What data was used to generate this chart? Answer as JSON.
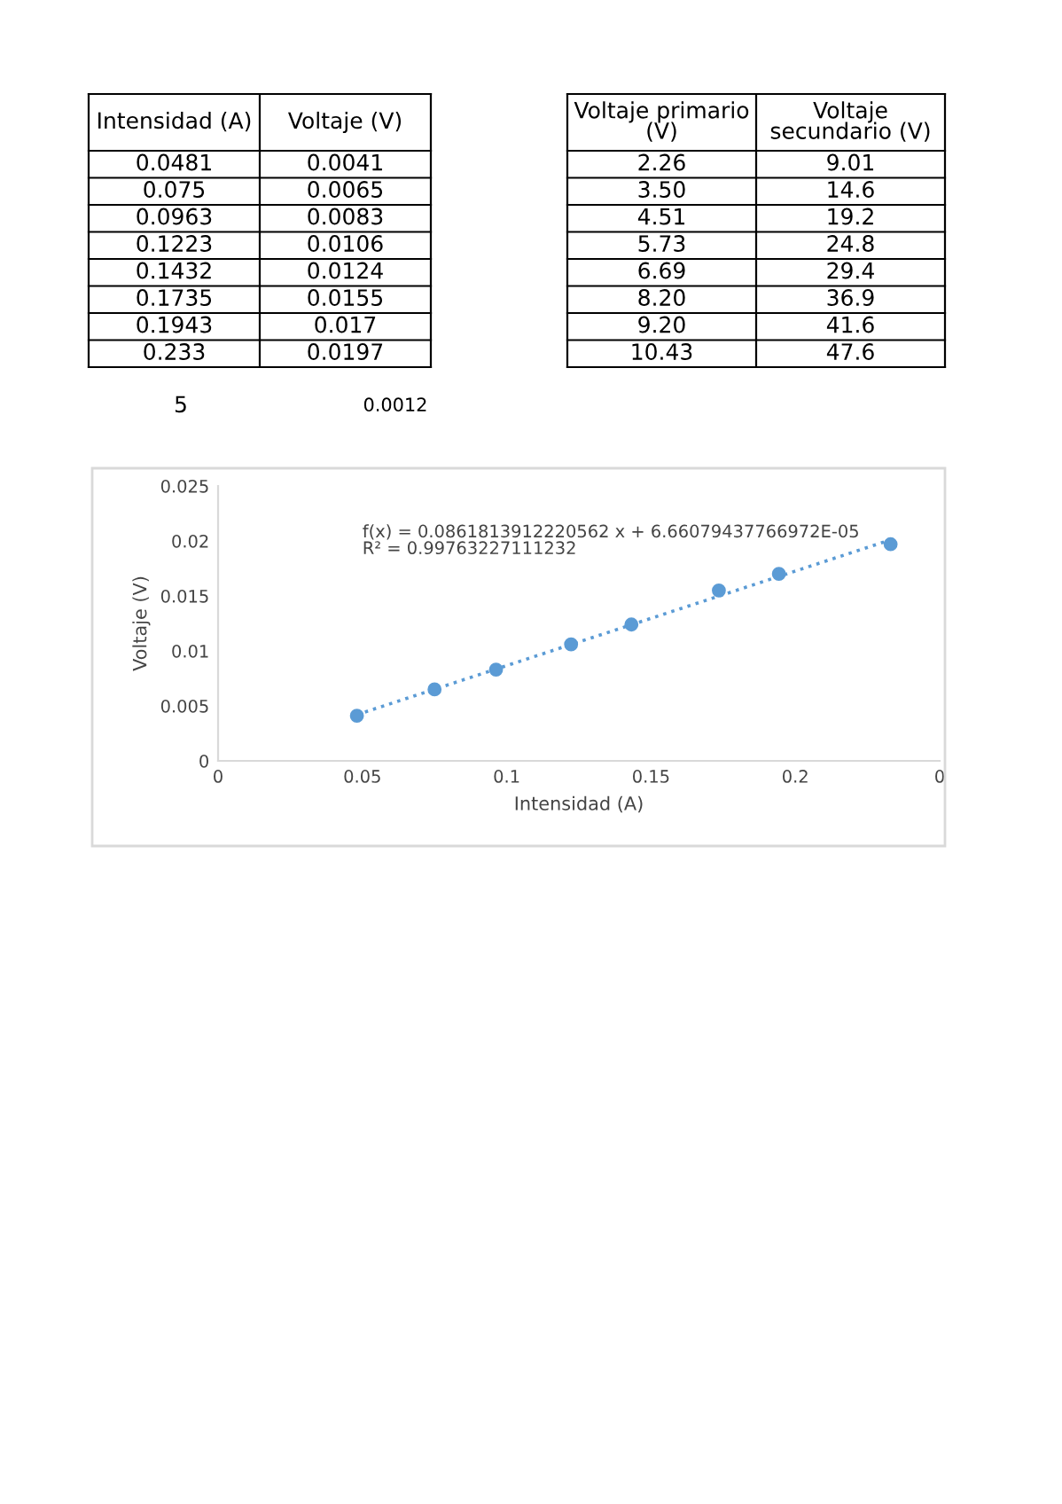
{
  "chart_data": [
    {
      "type": "other",
      "categories": [
        "Intensidad (A)",
        "Voltaje (V)"
      ],
      "annotations": [
        "0.0481",
        "0.0041",
        "0.075",
        "0.0065",
        "0.0963",
        "0.0083",
        "0.1223",
        "0.0106",
        "0.1432",
        "0.0124",
        "0.1735",
        "0.0155",
        "0.1943",
        "0.017",
        "0.233",
        "0.0197"
      ]
    },
    {
      "type": "other",
      "categories": [
        "Voltaje primario\n(V)",
        "Voltaje\nsecundario (V)"
      ],
      "annotations": [
        "2.26",
        "9.01",
        "3.50",
        "14.6",
        "4.51",
        "19.2",
        "5.73",
        "24.8",
        "6.69",
        "29.4",
        "8.20",
        "36.9",
        "9.20",
        "41.6",
        "10.43",
        "47.6"
      ]
    },
    {
      "type": "other",
      "annotations": [
        "5",
        "0.0012"
      ]
    },
    {
      "type": "scatter",
      "xlabel": "Intensidad (A)",
      "ylabel": "Voltaje (V)",
      "x": [
        0.0481,
        0.075,
        0.0963,
        0.1223,
        0.1432,
        0.1735,
        0.1943,
        0.233
      ],
      "series": [
        {
          "type": "scatter",
          "color": "#5b9bd5",
          "marker": "circle",
          "values": [
            0.0041,
            0.0065,
            0.0083,
            0.0106,
            0.0124,
            0.0155,
            0.017,
            0.0197
          ]
        },
        {
          "type": "line",
          "color": "#5b9bd5",
          "line_style": "dotted",
          "x": [
            0.0481,
            0.233
          ],
          "values": [
            0.0042,
            0.0201
          ]
        }
      ],
      "annotations": [
        "f(x) = 0.0861813912220562 x + 6.66079437766972E-05\nR² = 0.99763227111232"
      ],
      "xlim": [
        0,
        0.25
      ],
      "xticks": [
        0,
        0.05,
        0.1,
        0.15,
        0.2,
        {
          "value": 0.25,
          "label": "0"
        }
      ],
      "ylim": [
        0,
        0.025
      ],
      "yticks": [
        0,
        0.005,
        0.01,
        0.015,
        0.02,
        0.025
      ],
      "grid": false,
      "legend": false
    }
  ]
}
